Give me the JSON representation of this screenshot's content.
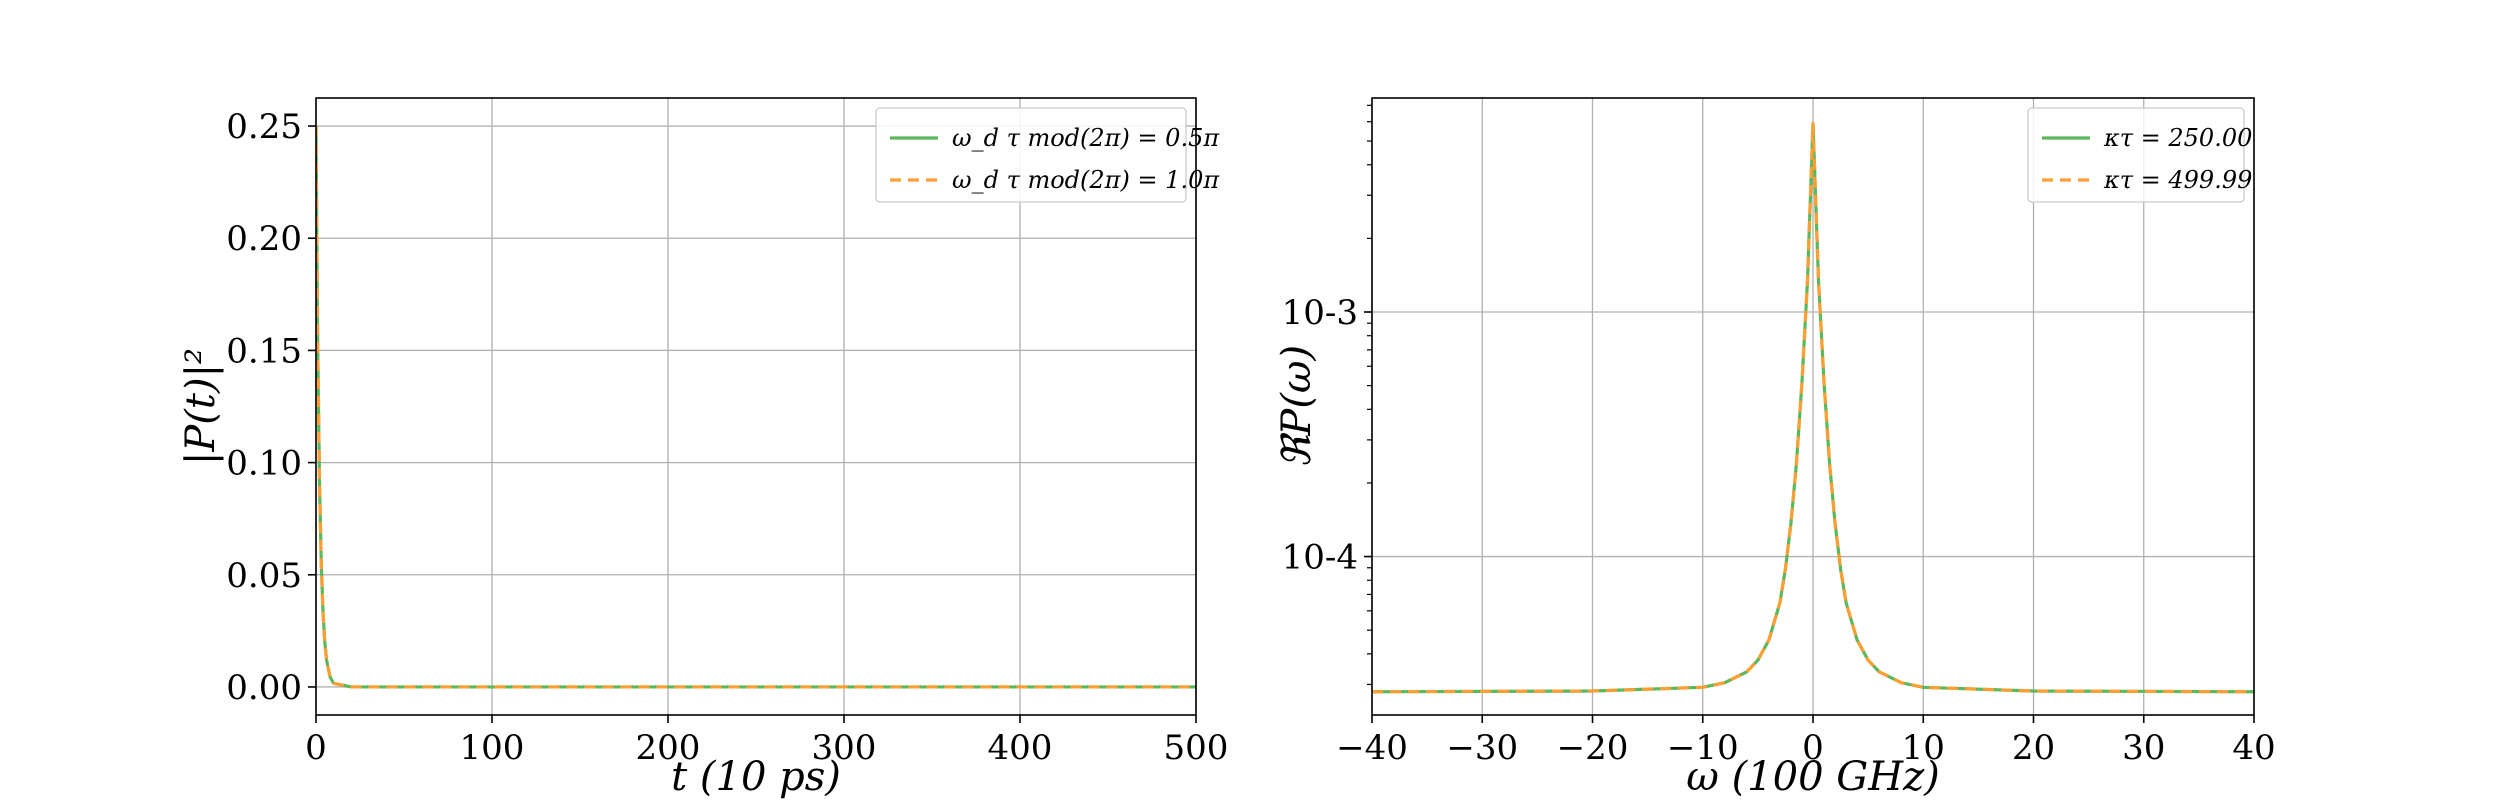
{
  "colors": {
    "series_a": "#5cb85c",
    "series_b": "#ff9f33",
    "grid": "#b0b0b0",
    "axes": "#000000"
  },
  "chart_data": [
    {
      "type": "line",
      "xlabel": "t (10 ps)",
      "ylabel": "|P(t)|²",
      "xlim": [
        0,
        500
      ],
      "ylim": [
        -0.0125,
        0.2625
      ],
      "xticks": [
        0,
        100,
        200,
        300,
        400,
        500
      ],
      "xtick_labels": [
        "0",
        "100",
        "200",
        "300",
        "400",
        "500"
      ],
      "yticks": [
        0.0,
        0.05,
        0.1,
        0.15,
        0.2,
        0.25
      ],
      "ytick_labels": [
        "0.00",
        "0.05",
        "0.10",
        "0.15",
        "0.20",
        "0.25"
      ],
      "grid": true,
      "legend_position": "top-right",
      "series": [
        {
          "name": "ω_d τ mod(2π) = 0.5π",
          "style": "solid",
          "x": [
            0,
            1,
            2,
            3,
            4,
            5,
            6,
            8,
            10,
            20,
            100,
            200,
            300,
            400,
            500
          ],
          "y": [
            0.25,
            0.15,
            0.091,
            0.055,
            0.033,
            0.02,
            0.012,
            0.0045,
            0.0016,
            0.0,
            0.0,
            0.0,
            0.0,
            0.0,
            0.0
          ]
        },
        {
          "name": "ω_d τ mod(2π) = 1.0π",
          "style": "dashed",
          "x": [
            0,
            1,
            2,
            3,
            4,
            5,
            6,
            8,
            10,
            20,
            100,
            200,
            300,
            400,
            500
          ],
          "y": [
            0.25,
            0.15,
            0.091,
            0.055,
            0.033,
            0.02,
            0.012,
            0.0045,
            0.0016,
            0.0,
            0.0,
            0.0,
            0.0,
            0.0,
            0.0
          ]
        }
      ]
    },
    {
      "type": "line",
      "xlabel": "ω (100 GHz)",
      "ylabel": "ℜP(ω)",
      "xlim": [
        -40,
        40
      ],
      "ylim": [
        2.25e-05,
        0.0075
      ],
      "yscale": "log",
      "xticks": [
        -40,
        -30,
        -20,
        -10,
        0,
        10,
        20,
        30,
        40
      ],
      "xtick_labels": [
        "−40",
        "−30",
        "−20",
        "−10",
        "0",
        "10",
        "20",
        "30",
        "40"
      ],
      "yticks": [
        0.0001,
        0.001
      ],
      "ytick_labels": [
        "10-4",
        "10-3"
      ],
      "grid": true,
      "legend_position": "top-right",
      "series": [
        {
          "name": "κτ = 250.00",
          "style": "solid",
          "x": [
            -40,
            -20,
            -10,
            -8,
            -6,
            -5,
            -4,
            -3,
            -2.5,
            -2,
            -1.5,
            -1,
            -0.5,
            0,
            0.5,
            1,
            1.5,
            2,
            2.5,
            3,
            4,
            5,
            6,
            8,
            10,
            20,
            40
          ],
          "y": [
            2.8e-05,
            2.82e-05,
            2.92e-05,
            3.05e-05,
            3.38e-05,
            3.77e-05,
            4.56e-05,
            6.48e-05,
            8.92e-05,
            0.000137,
            0.000241,
            0.000515,
            0.00134,
            0.0059,
            0.00134,
            0.000515,
            0.000241,
            0.000137,
            8.92e-05,
            6.48e-05,
            4.56e-05,
            3.77e-05,
            3.38e-05,
            3.05e-05,
            2.92e-05,
            2.82e-05,
            2.8e-05
          ]
        },
        {
          "name": "κτ = 499.99",
          "style": "dashed",
          "x": [
            -40,
            -20,
            -10,
            -8,
            -6,
            -5,
            -4,
            -3,
            -2.5,
            -2,
            -1.5,
            -1,
            -0.5,
            0,
            0.5,
            1,
            1.5,
            2,
            2.5,
            3,
            4,
            5,
            6,
            8,
            10,
            20,
            40
          ],
          "y": [
            2.8e-05,
            2.82e-05,
            2.92e-05,
            3.05e-05,
            3.38e-05,
            3.77e-05,
            4.56e-05,
            6.48e-05,
            8.92e-05,
            0.000137,
            0.000241,
            0.000515,
            0.00134,
            0.0059,
            0.00134,
            0.000515,
            0.000241,
            0.000137,
            8.92e-05,
            6.48e-05,
            4.56e-05,
            3.77e-05,
            3.38e-05,
            3.05e-05,
            2.92e-05,
            2.82e-05,
            2.8e-05
          ]
        }
      ]
    }
  ]
}
